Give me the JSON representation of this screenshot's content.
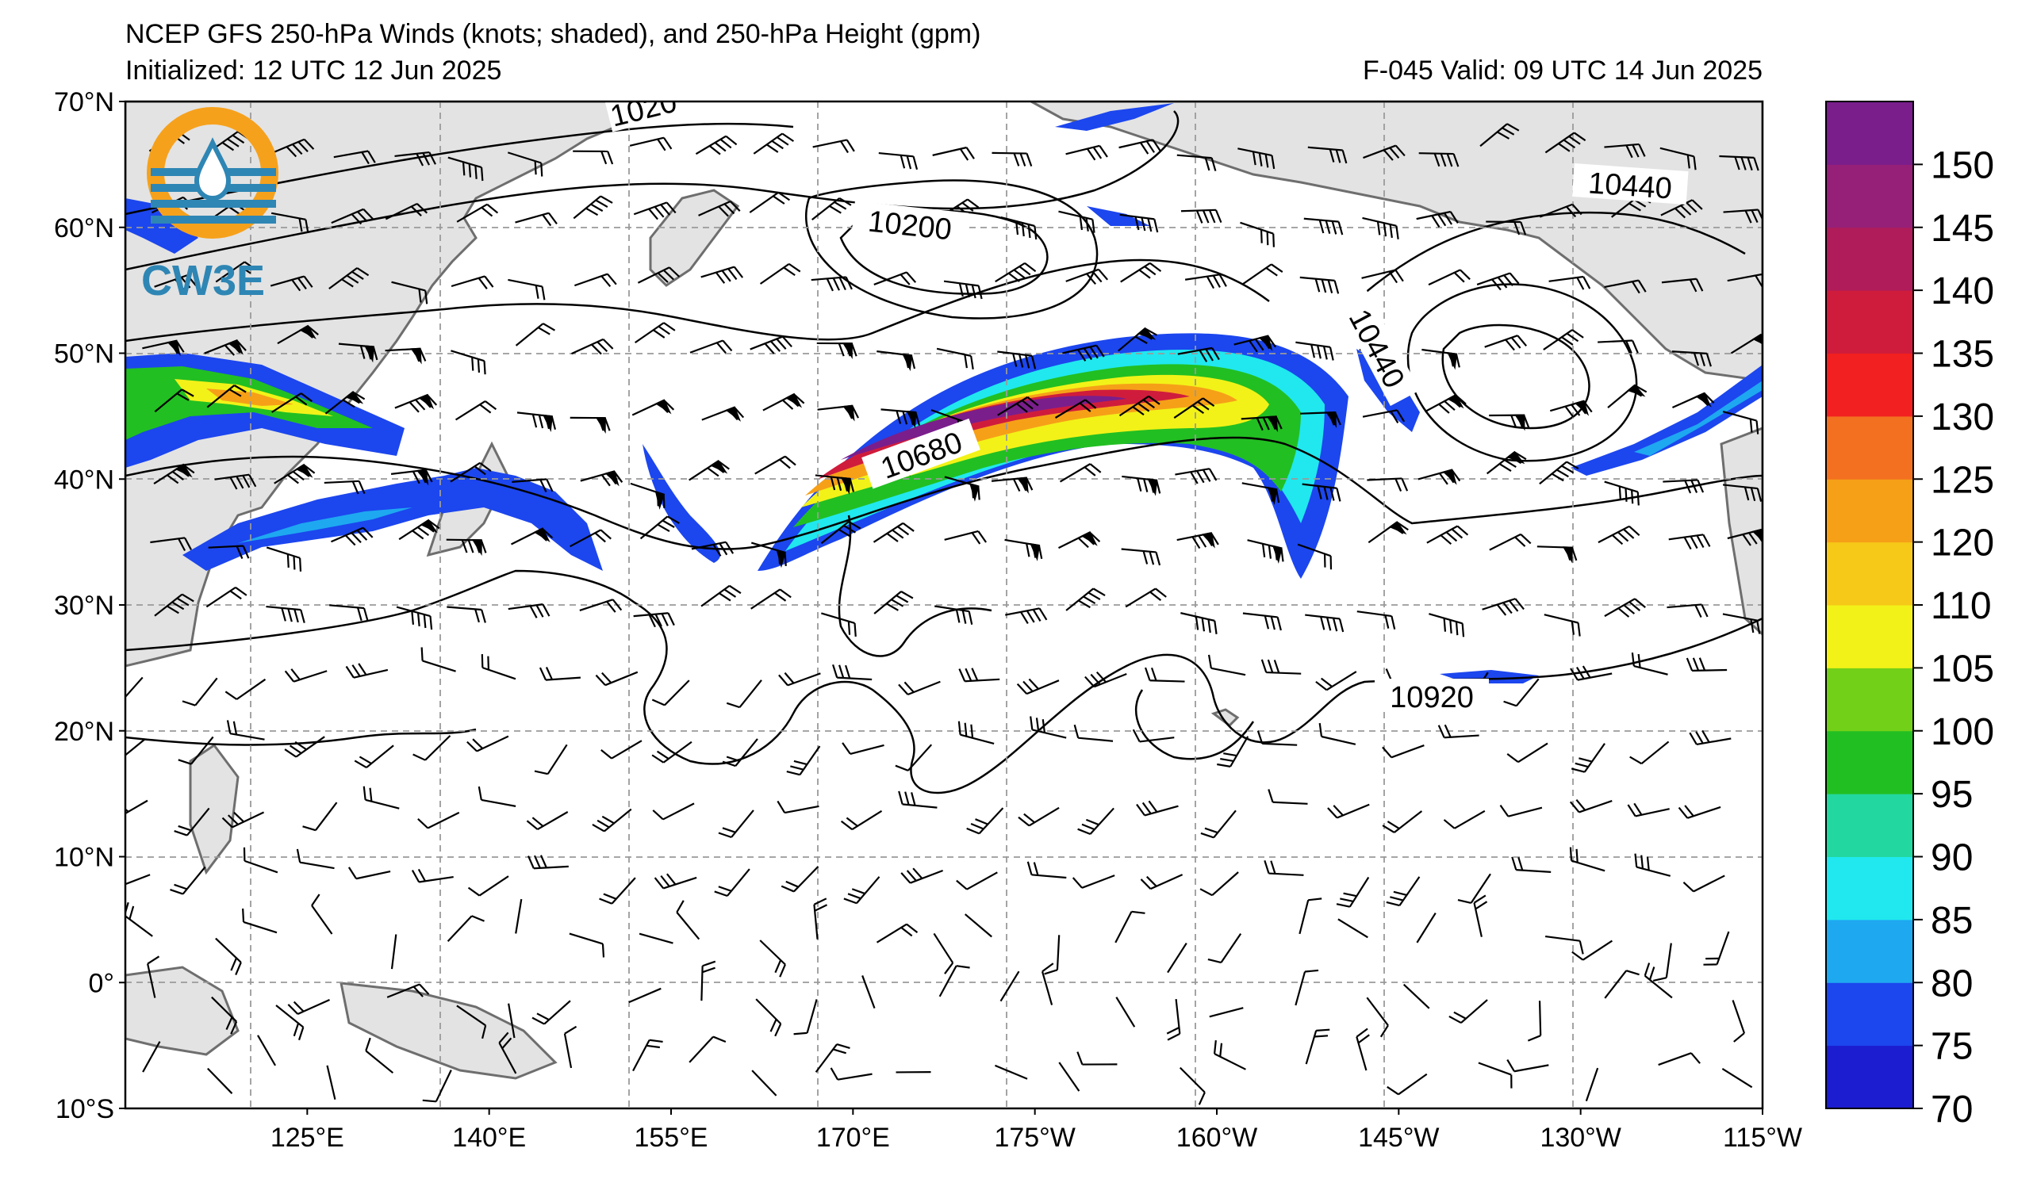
{
  "header": {
    "title": "NCEP GFS 250-hPa Winds (knots; shaded), and 250-hPa Height (gpm)",
    "initialized": "Initialized: 12 UTC 12 Jun 2025",
    "forecast": "F-045  Valid: 09 UTC 14 Jun 2025"
  },
  "logo": {
    "text": "CW3E",
    "colors": {
      "ring": "#f6a11c",
      "waves": "#2e86b4",
      "drop": "#2e86b4"
    }
  },
  "map": {
    "lat_range": [
      -10,
      70
    ],
    "lon_range_east": [
      110,
      245
    ],
    "lat_labels": [
      "70°N",
      "60°N",
      "50°N",
      "40°N",
      "30°N",
      "20°N",
      "10°N",
      "0°",
      "10°S"
    ],
    "lat_values": [
      70,
      60,
      50,
      40,
      30,
      20,
      10,
      0,
      -10
    ],
    "lon_labels": [
      "125°E",
      "140°E",
      "155°E",
      "170°E",
      "175°W",
      "160°W",
      "145°W",
      "130°W",
      "115°W"
    ],
    "lon_values": [
      125,
      140,
      155,
      170,
      185,
      200,
      215,
      230,
      245
    ],
    "land_color": "#e3e3e3",
    "coast_color": "#6e6e6e",
    "grid": "dashed",
    "height_contour_labels": [
      {
        "text": "1020"
      },
      {
        "text": "10200"
      },
      {
        "text": "10440"
      },
      {
        "text": "10440"
      },
      {
        "text": "10680"
      },
      {
        "text": "10920"
      }
    ]
  },
  "colorbar": {
    "ticks": [
      "70",
      "75",
      "80",
      "85",
      "90",
      "95",
      "100",
      "105",
      "110",
      "120",
      "125",
      "130",
      "135",
      "140",
      "145",
      "150"
    ],
    "colors": [
      "#1c1cd0",
      "#1c46ee",
      "#1ea8f0",
      "#20e8ee",
      "#22d8a0",
      "#22bf22",
      "#72d018",
      "#f2f218",
      "#f6c818",
      "#f6a018",
      "#f27020",
      "#f22020",
      "#d01c3c",
      "#b01c5a",
      "#962078",
      "#7a1e8c"
    ]
  }
}
